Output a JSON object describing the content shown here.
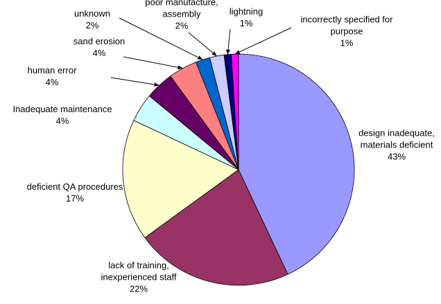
{
  "chart_data": {
    "type": "pie",
    "categories": [
      "design inadequate, materials deficient",
      "lack of training, inexperienced staff",
      "deficient QA procedures",
      "Inadequate maintenance",
      "human error",
      "sand erosion",
      "unknown",
      "poor manufacture, assembly",
      "lightning",
      "incorrectly specified for purpose"
    ],
    "values": [
      43,
      22,
      17,
      4,
      4,
      4,
      2,
      2,
      1,
      1
    ],
    "value_labels": [
      "43%",
      "22%",
      "17%",
      "4%",
      "4%",
      "4%",
      "2%",
      "2%",
      "1%",
      "1%"
    ],
    "colors": [
      "#9999ff",
      "#993366",
      "#ffffcc",
      "#ccffff",
      "#660066",
      "#ff8080",
      "#0066cc",
      "#ccccff",
      "#000080",
      "#ff00ff"
    ]
  }
}
